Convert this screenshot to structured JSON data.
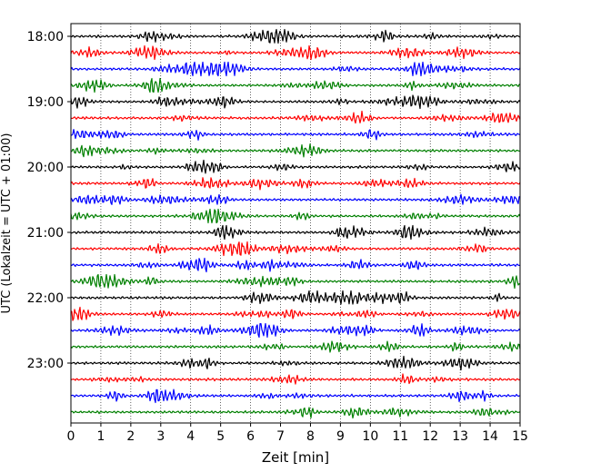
{
  "chart_data": {
    "type": "line",
    "title": "",
    "xlabel": "Zeit  [min]",
    "ylabel": "UTC (Lokalzeit = UTC + 01:00)",
    "xlim": [
      0,
      15
    ],
    "x_ticks": [
      "0",
      "1",
      "2",
      "3",
      "4",
      "5",
      "6",
      "7",
      "8",
      "9",
      "10",
      "11",
      "12",
      "13",
      "14",
      "15"
    ],
    "y_ticks": [
      "18:00",
      "19:00",
      "20:00",
      "21:00",
      "22:00",
      "23:00"
    ],
    "grid": "vertical-dotted",
    "trace_interval_min": 15,
    "trace_start": "18:00",
    "trace_count": 24,
    "trace_colors": [
      "#000000",
      "#ff0000",
      "#0000ff",
      "#008000"
    ]
  }
}
